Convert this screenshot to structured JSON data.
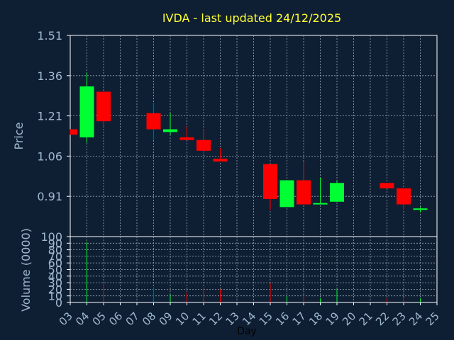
{
  "chart_data": {
    "type": "candlestick",
    "title": "IVDA - last updated 24/12/2025",
    "xlabel": "Day",
    "price_panel": {
      "ylabel": "Price",
      "ylim": [
        0.76,
        1.51
      ],
      "yticks": [
        "1.51",
        "1.36",
        "1.21",
        "1.06",
        "0.91"
      ],
      "grid": true
    },
    "volume_panel": {
      "ylabel": "Volume (0000)",
      "ylim": [
        0,
        100
      ],
      "yticks": [
        "100",
        "90",
        "80",
        "70",
        "60",
        "50",
        "40",
        "30",
        "20",
        "10",
        "0"
      ],
      "grid": true
    },
    "x_tick_labels": [
      "03",
      "04",
      "05",
      "06",
      "07",
      "08",
      "09",
      "10",
      "11",
      "12",
      "13",
      "14",
      "15",
      "16",
      "17",
      "18",
      "19",
      "20",
      "21",
      "22",
      "23",
      "24",
      "25"
    ],
    "candles": [
      {
        "day": "03",
        "open": 1.16,
        "close": 1.14,
        "high": 1.16,
        "low": 1.14,
        "volume": 0
      },
      {
        "day": "04",
        "open": 1.13,
        "close": 1.32,
        "high": 1.37,
        "low": 1.11,
        "volume": 92
      },
      {
        "day": "05",
        "open": 1.3,
        "close": 1.19,
        "high": 1.3,
        "low": 1.17,
        "volume": 28
      },
      {
        "day": "08",
        "open": 1.22,
        "close": 1.16,
        "high": 1.26,
        "low": 1.12,
        "volume": 22
      },
      {
        "day": "09",
        "open": 1.15,
        "close": 1.16,
        "high": 1.22,
        "low": 1.14,
        "volume": 12
      },
      {
        "day": "10",
        "open": 1.13,
        "close": 1.12,
        "high": 1.17,
        "low": 1.12,
        "volume": 15
      },
      {
        "day": "11",
        "open": 1.12,
        "close": 1.08,
        "high": 1.16,
        "low": 1.07,
        "volume": 22
      },
      {
        "day": "12",
        "open": 1.05,
        "close": 1.04,
        "high": 1.09,
        "low": 1.04,
        "volume": 20
      },
      {
        "day": "15",
        "open": 1.03,
        "close": 0.9,
        "high": 1.03,
        "low": 0.86,
        "volume": 29
      },
      {
        "day": "16",
        "open": 0.87,
        "close": 0.97,
        "high": 0.97,
        "low": 0.87,
        "volume": 10
      },
      {
        "day": "17",
        "open": 0.97,
        "close": 0.88,
        "high": 1.04,
        "low": 0.88,
        "volume": 10
      },
      {
        "day": "18",
        "open": 0.88,
        "close": 0.885,
        "high": 0.98,
        "low": 0.88,
        "volume": 6
      },
      {
        "day": "19",
        "open": 0.89,
        "close": 0.96,
        "high": 0.97,
        "low": 0.89,
        "volume": 20
      },
      {
        "day": "22",
        "open": 0.96,
        "close": 0.94,
        "high": 0.96,
        "low": 0.94,
        "volume": 6
      },
      {
        "day": "23",
        "open": 0.94,
        "close": 0.88,
        "high": 0.94,
        "low": 0.86,
        "volume": 8
      },
      {
        "day": "24",
        "open": 0.86,
        "close": 0.865,
        "high": 0.87,
        "low": 0.85,
        "volume": 6
      }
    ],
    "colors": {
      "background": "#0f1f33",
      "axis_text": "#9fb8cc",
      "title": "#ffff33",
      "up": "#00ff33",
      "down": "#ff0000",
      "frame": "#ffffff",
      "grid": "#9aa6b2"
    }
  }
}
